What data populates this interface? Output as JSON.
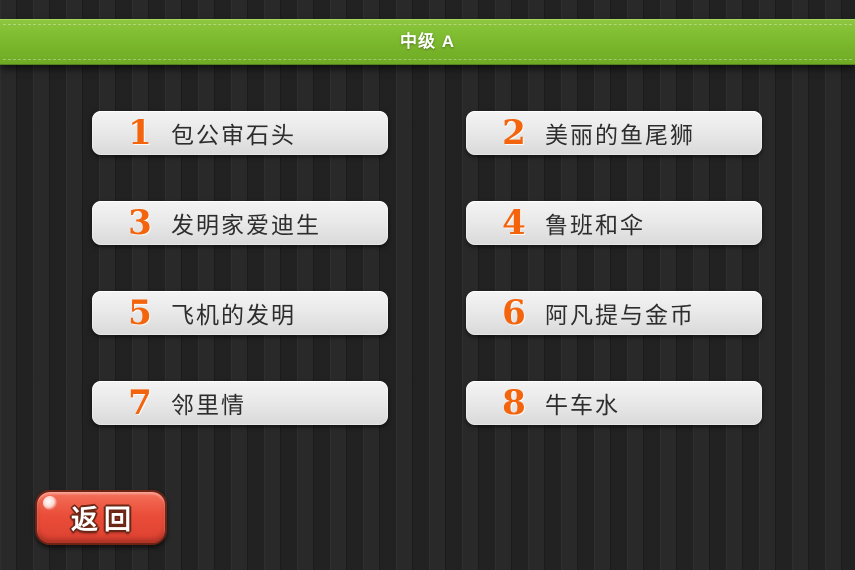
{
  "header": {
    "title": "中级 A"
  },
  "lessons": [
    {
      "number": "1",
      "title": "包公审石头"
    },
    {
      "number": "2",
      "title": "美丽的鱼尾狮"
    },
    {
      "number": "3",
      "title": "发明家爱迪生"
    },
    {
      "number": "4",
      "title": "鲁班和伞"
    },
    {
      "number": "5",
      "title": "飞机的发明"
    },
    {
      "number": "6",
      "title": "阿凡提与金币"
    },
    {
      "number": "7",
      "title": "邻里情"
    },
    {
      "number": "8",
      "title": "牛车水"
    }
  ],
  "back_button": {
    "label": "返回"
  },
  "colors": {
    "header_green": "#7cba2e",
    "number_orange": "#f3640d",
    "back_red": "#ea4e3a",
    "background_dark": "#262626",
    "lesson_button_gray": "#e7e7e7"
  }
}
